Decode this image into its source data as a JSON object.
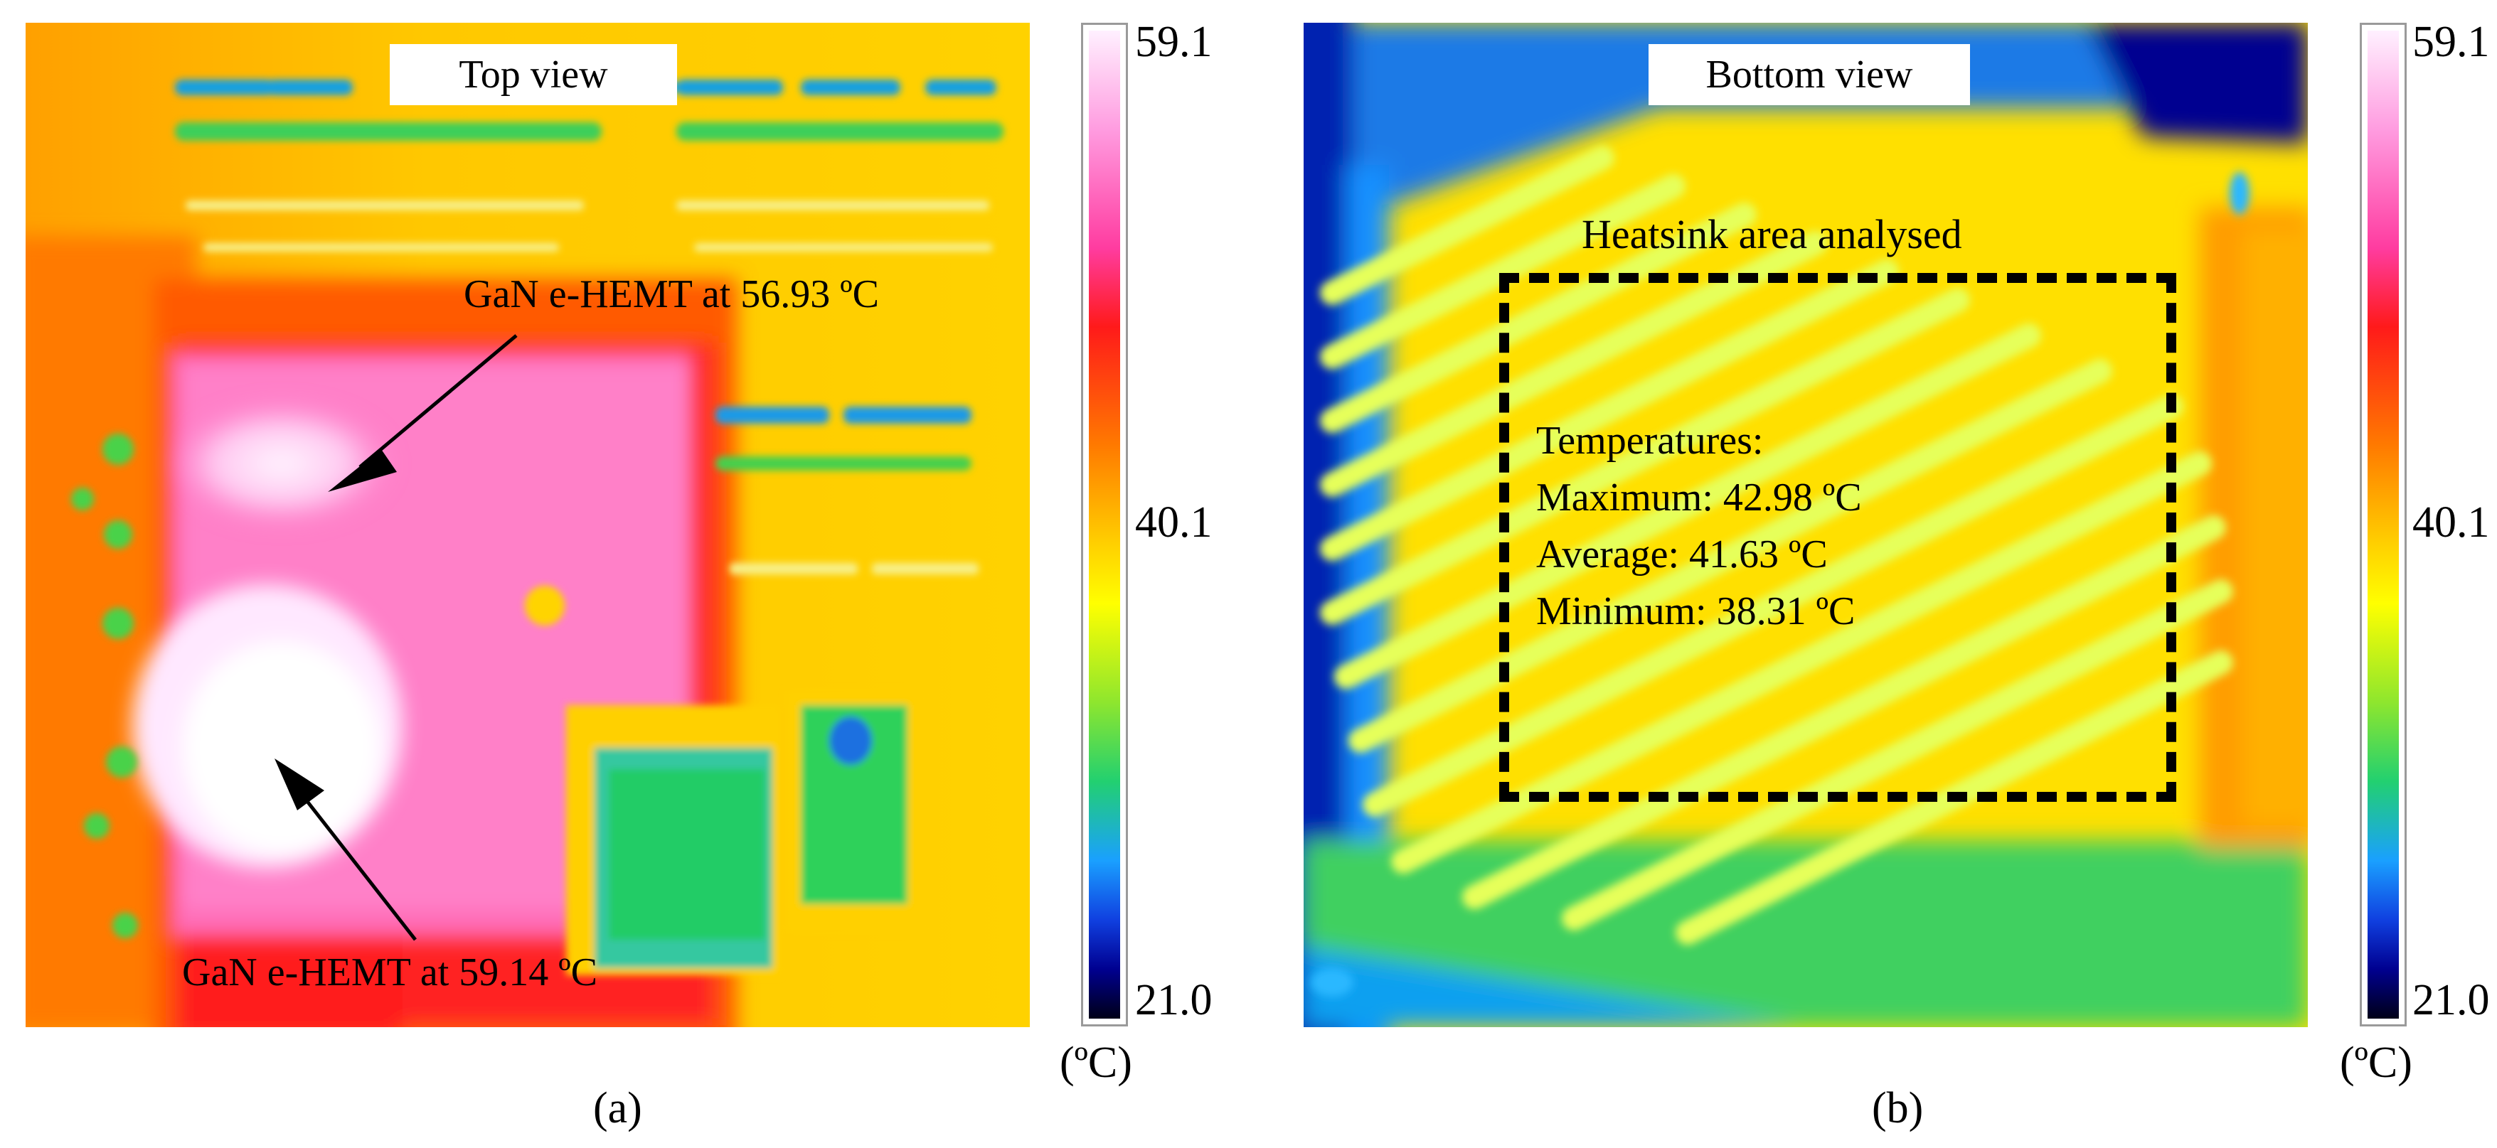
{
  "panel_a": {
    "view_label": "Top view",
    "annotation_1": "GaN e-HEMT at 56.93 ºC",
    "annotation_2": "GaN e-HEMT at 59.14 ºC",
    "caption": "(a)"
  },
  "panel_b": {
    "view_label": "Bottom view",
    "region_title": "Heatsink area analysed",
    "stats": {
      "heading": "Temperatures:",
      "maximum": "Maximum: 42.98 ºC",
      "average": "Average: 41.63 ºC",
      "minimum": "Minimum: 38.31 ºC"
    },
    "caption": "(b)"
  },
  "scale": {
    "max_label": "59.1",
    "mid_label": "40.1",
    "min_label": "21.0",
    "unit": "(ºC)",
    "max_value": 59.1,
    "mid_value": 40.1,
    "min_value": 21.0
  },
  "colors": {
    "hot": "#ffd0ff",
    "red": "#ff1a1a",
    "orange": "#ff8c00",
    "yellow": "#ffe400",
    "green": "#39d24a",
    "cyan": "#1aa0ff",
    "blue": "#0000c8",
    "cold": "#000018"
  }
}
